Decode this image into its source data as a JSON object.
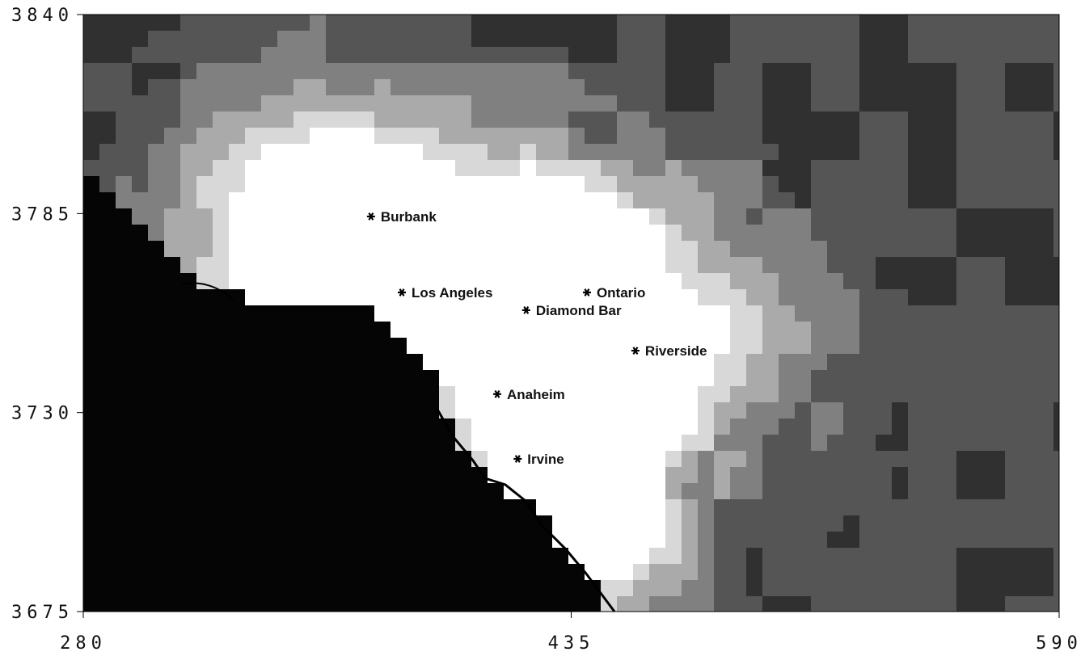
{
  "chart_data": {
    "type": "map",
    "xlim": [
      280,
      590
    ],
    "ylim": [
      3675,
      3840
    ],
    "xticks": [
      280,
      435,
      590
    ],
    "yticks": [
      3675,
      3730,
      3785,
      3840
    ],
    "points": [
      {
        "label": "Burbank",
        "x": 371.4,
        "y": 3784.2
      },
      {
        "label": "Los Angeles",
        "x": 381.2,
        "y": 3763.2
      },
      {
        "label": "Ontario",
        "x": 440.0,
        "y": 3763.2
      },
      {
        "label": "Diamond Bar",
        "x": 420.7,
        "y": 3758.3
      },
      {
        "label": "Riverside",
        "x": 455.4,
        "y": 3747.1
      },
      {
        "label": "Anaheim",
        "x": 411.5,
        "y": 3735.1
      },
      {
        "label": "Irvine",
        "x": 418.0,
        "y": 3717.2
      }
    ]
  }
}
